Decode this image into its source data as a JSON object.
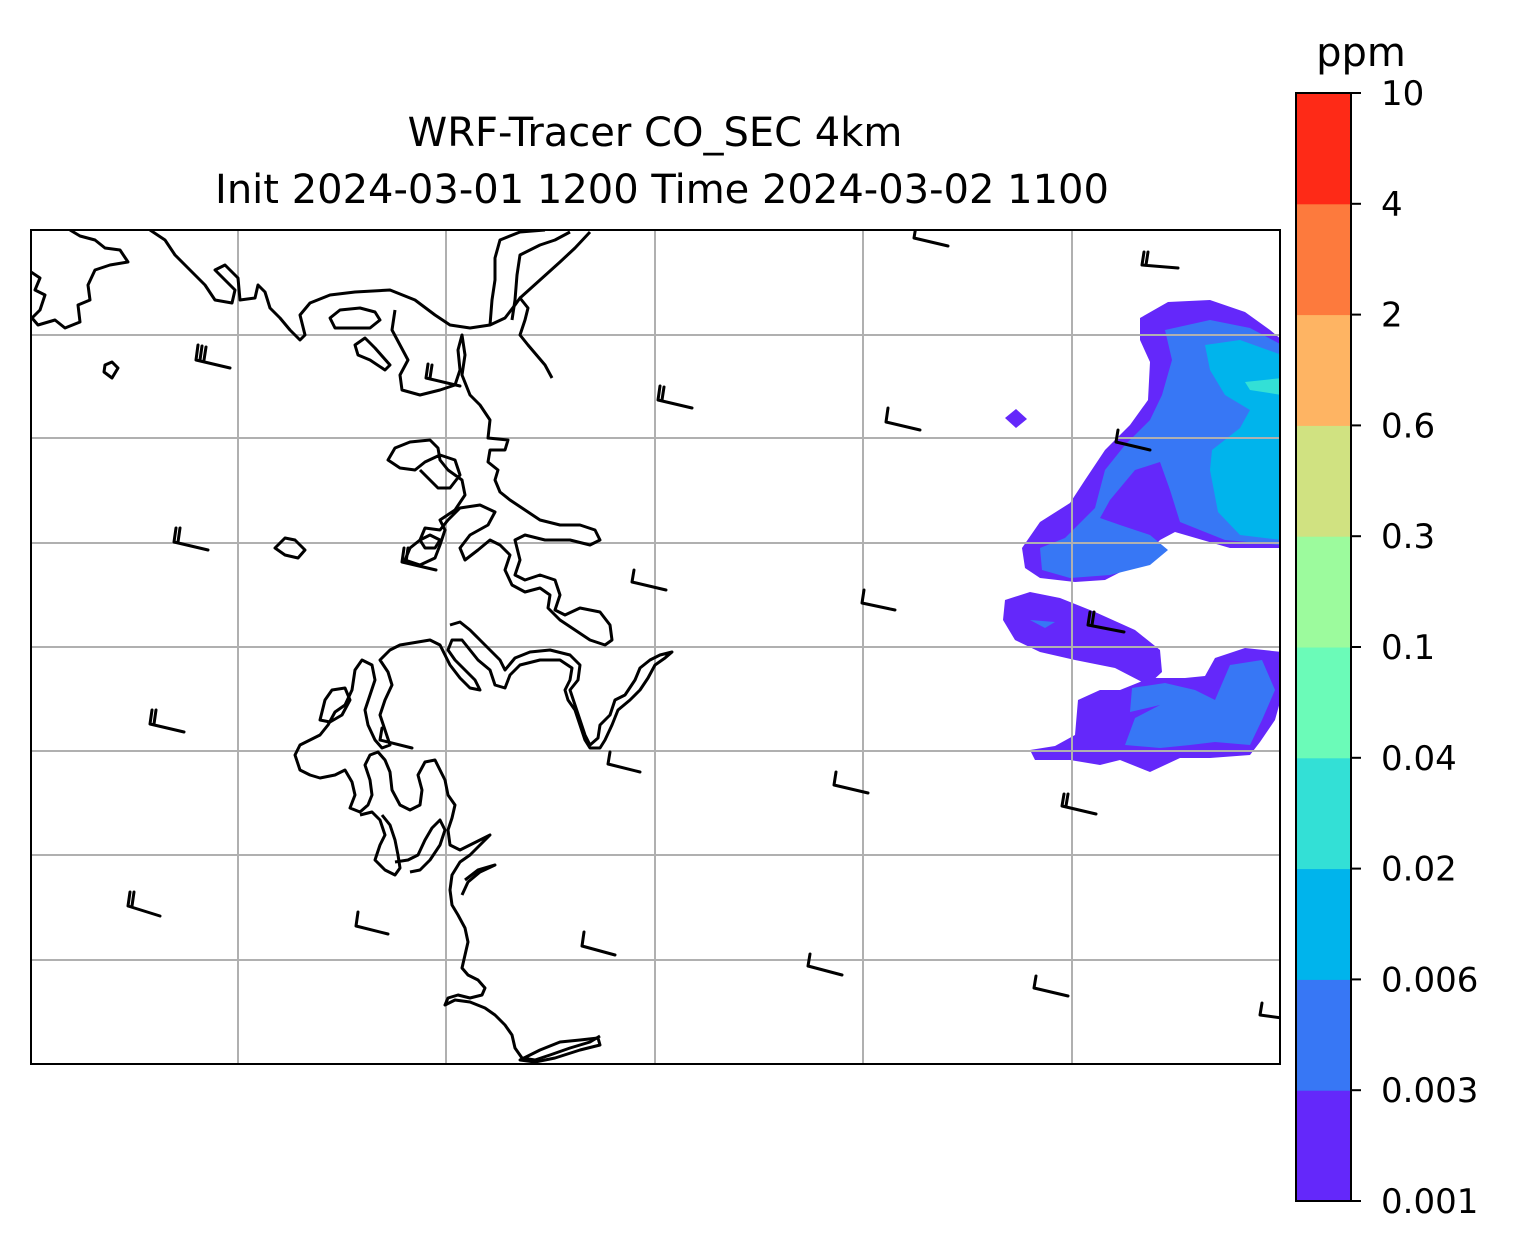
{
  "figure": {
    "title_line1": "WRF-Tracer CO_SEC 4km",
    "title_line2": "Init 2024-03-01 1200 Time 2024-03-02 1100"
  },
  "colorbar": {
    "unit_label": "ppm",
    "levels": [
      "0.001",
      "0.003",
      "0.006",
      "0.02",
      "0.04",
      "0.1",
      "0.3",
      "0.6",
      "2",
      "4",
      "10"
    ],
    "colors": [
      "#6428fa",
      "#3777f5",
      "#00b4ec",
      "#33e0d6",
      "#6bfbb8",
      "#9cfb9d",
      "#d0e281",
      "#feb463",
      "#fd7a3d",
      "#fe2a17"
    ]
  },
  "map": {
    "gridlines": true,
    "coastline_color": "#000000",
    "gridline_color": "#b0b0b0",
    "wind_barb_color": "#000000"
  }
}
